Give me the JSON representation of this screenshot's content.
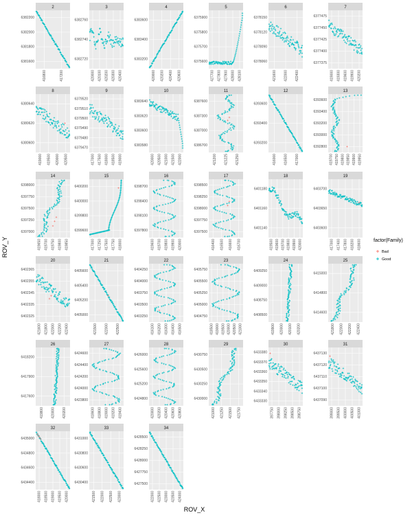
{
  "chart_data": {
    "type": "scatter",
    "xlabel": "ROV_X",
    "ylabel": "ROV_Y",
    "facet_by": "id",
    "grid": true,
    "legend": {
      "title": "factor(Family)",
      "placement": "right",
      "entries": [
        {
          "name": "Bad",
          "color": "#f8766d"
        },
        {
          "name": "Good",
          "color": "#00bfc4"
        }
      ]
    },
    "colors": {
      "Bad": "#f8766d",
      "Good": "#00bfc4",
      "panel_bg": "#ebebeb",
      "strip_bg": "#d9d9d9",
      "grid": "#ffffff"
    },
    "panels": [
      {
        "id": "2",
        "xticks": [
          "416800",
          "417200"
        ],
        "yticks": [
          "6382200",
          "6382000",
          "6381800",
          "6381600"
        ],
        "xlim": [
          416600,
          417300
        ],
        "ylim": [
          6381500,
          6382250
        ],
        "shape": "line_down",
        "bad": []
      },
      {
        "id": "3",
        "xticks": [
          "420000",
          "420100",
          "420200",
          "420300",
          "420400"
        ],
        "yticks": [
          "6382760",
          "6382740",
          "6382720"
        ],
        "xlim": [
          419950,
          420420
        ],
        "ylim": [
          6382710,
          6382775
        ],
        "shape": "jagged_flat",
        "bad": []
      },
      {
        "id": "4",
        "xticks": [
          "420000",
          "420200",
          "420400",
          "420600"
        ],
        "yticks": [
          "6383600",
          "6383400",
          "6383200"
        ],
        "xlim": [
          419950,
          420650
        ],
        "ylim": [
          6383100,
          6383650
        ],
        "shape": "line_up",
        "bad": []
      },
      {
        "id": "5",
        "xticks": [
          "427700",
          "427800",
          "427900",
          "428000",
          "428100"
        ],
        "yticks": [
          "6375900",
          "6375800",
          "6375700",
          "6375600"
        ],
        "xlim": [
          427650,
          428150
        ],
        "ylim": [
          6375580,
          6375930
        ],
        "shape": "hockey",
        "bad": []
      },
      {
        "id": "6",
        "xticks": [
          "421600",
          "422000",
          "422400"
        ],
        "yticks": [
          "6378150",
          "6378120",
          "6378090",
          "6378060"
        ],
        "xlim": [
          421500,
          422500
        ],
        "ylim": [
          6378050,
          6378170
        ],
        "shape": "decline_noisy",
        "bad": []
      },
      {
        "id": "7",
        "xticks": [
          "419000",
          "419300",
          "419600",
          "419900",
          "420200"
        ],
        "yticks": [
          "6377475",
          "6377450",
          "6377425",
          "6377400",
          "6377375"
        ],
        "xlim": [
          418900,
          420300
        ],
        "ylim": [
          6377370,
          6377480
        ],
        "shape": "decline_noisy",
        "bad": []
      },
      {
        "id": "8",
        "xticks": [
          "419000",
          "419500",
          "420000",
          "420500"
        ],
        "yticks": [
          "6380640",
          "6380620",
          "6380600"
        ],
        "xlim": [
          418850,
          420650
        ],
        "ylim": [
          6380590,
          6380650
        ],
        "shape": "decline_noisy",
        "bad": [
          [
            0.85,
            0.5
          ]
        ]
      },
      {
        "id": "9",
        "xticks": [
          "417000",
          "417500",
          "418000",
          "418500",
          "419000"
        ],
        "yticks": [
          "6379520",
          "6379510",
          "6379500",
          "6379490",
          "6379480",
          "6379470"
        ],
        "xlim": [
          416900,
          419100
        ],
        "ylim": [
          6379465,
          6379525
        ],
        "shape": "decline_noisy",
        "bad": []
      },
      {
        "id": "10",
        "xticks": [
          "420000",
          "420500",
          "421000",
          "421500",
          "422000"
        ],
        "yticks": [
          "6383640",
          "6383620",
          "6383600",
          "6383580"
        ],
        "xlim": [
          419850,
          422200
        ],
        "ylim": [
          6383575,
          6383650
        ],
        "shape": "decline_drop",
        "bad": []
      },
      {
        "id": "11",
        "xticks": [
          "421200",
          "421225",
          "421250"
        ],
        "yticks": [
          "6387600",
          "6387300",
          "6387000",
          "6386700"
        ],
        "xlim": [
          421190,
          421265
        ],
        "ylim": [
          6386650,
          6387850
        ],
        "shape": "vertical_jagged",
        "bad": [
          [
            0.55,
            0.55
          ],
          [
            0.6,
            0.6
          ]
        ]
      },
      {
        "id": "12",
        "xticks": [
          "416000",
          "416500",
          "417000"
        ],
        "yticks": [
          "6393600",
          "6393400",
          "6393200"
        ],
        "xlim": [
          415900,
          417200
        ],
        "ylim": [
          6393100,
          6393700
        ],
        "shape": "line_down",
        "bad": []
      },
      {
        "id": "13",
        "xticks": [
          "419700",
          "419750",
          "419800",
          "419850",
          "419900",
          "419950"
        ],
        "yticks": [
          "6393600",
          "6393400",
          "6393200",
          "6393000",
          "6392800"
        ],
        "xlim": [
          419680,
          419960
        ],
        "ylim": [
          6392750,
          6393650
        ],
        "shape": "vertical_left",
        "bad": [
          [
            0.55,
            0.1
          ]
        ]
      },
      {
        "id": "14",
        "xticks": [
          "419650",
          "419700",
          "419750",
          "419800",
          "419850"
        ],
        "yticks": [
          "6398000",
          "6397750",
          "6397500",
          "6397250",
          "6397000"
        ],
        "xlim": [
          419630,
          419870
        ],
        "ylim": [
          6396950,
          6398050
        ],
        "shape": "rising_sparse",
        "bad": [
          [
            0.6,
            0.35
          ],
          [
            0.55,
            0.28
          ],
          [
            0.5,
            0.2
          ]
        ]
      },
      {
        "id": "15",
        "xticks": [
          "417000",
          "417250",
          "417500",
          "417750",
          "418000"
        ],
        "yticks": [
          "6400200",
          "6400000",
          "6399800",
          "6399600"
        ],
        "xlim": [
          416950,
          418050
        ],
        "ylim": [
          6399550,
          6400250
        ],
        "shape": "hockey_vertical",
        "bad": [
          [
            0.85,
            0.85
          ]
        ]
      },
      {
        "id": "16",
        "xticks": [
          "419600",
          "419700",
          "419800",
          "419900",
          "420000"
        ],
        "yticks": [
          "6398700",
          "6398400",
          "6398100",
          "6397800"
        ],
        "xlim": [
          419580,
          420020
        ],
        "ylim": [
          6397750,
          6398750
        ],
        "shape": "zigzag_vertical",
        "bad": []
      },
      {
        "id": "17",
        "xticks": [
          "416400",
          "416500",
          "416600",
          "416700"
        ],
        "yticks": [
          "6398500",
          "6398250",
          "6398000",
          "6397750",
          "6397500"
        ],
        "xlim": [
          416380,
          416720
        ],
        "ylim": [
          6397450,
          6398550
        ],
        "shape": "zigzag_vertical",
        "bad": [
          [
            0.55,
            0.55
          ],
          [
            0.6,
            0.62
          ]
        ]
      },
      {
        "id": "18",
        "xticks": [
          "419500",
          "419600",
          "419700",
          "419800",
          "419900",
          "420000"
        ],
        "yticks": [
          "6401180",
          "6401160",
          "6401140"
        ],
        "xlim": [
          419480,
          420020
        ],
        "ylim": [
          6401130,
          6401190
        ],
        "shape": "decline_bump",
        "bad": []
      },
      {
        "id": "19",
        "xticks": [
          "417000",
          "417400",
          "417800",
          "418200",
          "418600"
        ],
        "yticks": [
          "6403700",
          "6403650",
          "6403600"
        ],
        "xlim": [
          416900,
          418700
        ],
        "ylim": [
          6403590,
          6403730
        ],
        "shape": "decline_gentle",
        "bad": [
          [
            0.9,
            0.6
          ]
        ]
      },
      {
        "id": "20",
        "xticks": [
          "421600",
          "421800",
          "422000",
          "422200",
          "422400"
        ],
        "yticks": [
          "6402365",
          "6402355",
          "6402345",
          "6402335",
          "6402325"
        ],
        "xlim": [
          421550,
          422450
        ],
        "ylim": [
          6402322,
          6402368
        ],
        "shape": "decline_noisy",
        "bad": [
          [
            0.4,
            0.4
          ],
          [
            0.45,
            0.45
          ]
        ]
      },
      {
        "id": "21",
        "xticks": [
          "421500",
          "422000",
          "422500"
        ],
        "yticks": [
          "6405600",
          "6405400",
          "6405200",
          "6405000"
        ],
        "xlim": [
          421400,
          422700
        ],
        "ylim": [
          6404950,
          6405650
        ],
        "shape": "line_down",
        "bad": [
          [
            0.55,
            0.45
          ]
        ]
      },
      {
        "id": "22",
        "xticks": [
          "416100",
          "416200",
          "416300",
          "416400",
          "416500"
        ],
        "yticks": [
          "6404250",
          "6404000",
          "6403750",
          "6403500",
          "6403250"
        ],
        "xlim": [
          416080,
          416520
        ],
        "ylim": [
          6403200,
          6404300
        ],
        "shape": "zigzag_vertical",
        "bad": [
          [
            0.3,
            0.2
          ]
        ]
      },
      {
        "id": "23",
        "xticks": [
          "418500",
          "419000",
          "419500",
          "420000",
          "420500",
          "421000"
        ],
        "yticks": [
          "6405750",
          "6405500",
          "6405250",
          "6405000",
          "6404750"
        ],
        "xlim": [
          418400,
          421100
        ],
        "ylim": [
          6404700,
          6405800
        ],
        "shape": "zigzag_wide",
        "bad": []
      },
      {
        "id": "24",
        "xticks": [
          "419900",
          "420000",
          "420100",
          "420200"
        ],
        "yticks": [
          "6409250",
          "6409000",
          "6408750",
          "6408500"
        ],
        "xlim": [
          419850,
          420250
        ],
        "ylim": [
          6408350,
          6409350
        ],
        "shape": "vertical_line",
        "bad": []
      },
      {
        "id": "25",
        "xticks": [
          "421800",
          "422000",
          "422200",
          "422400"
        ],
        "yticks": [
          "6415000",
          "6414800",
          "6414600"
        ],
        "xlim": [
          421750,
          422450
        ],
        "ylim": [
          6414450,
          6415100
        ],
        "shape": "rising_sparse",
        "bad": []
      },
      {
        "id": "26",
        "xticks": [
          "419800",
          "420000",
          "420200"
        ],
        "yticks": [
          "6418200",
          "6417900",
          "6417600"
        ],
        "xlim": [
          419700,
          420300
        ],
        "ylim": [
          6417350,
          6418400
        ],
        "shape": "vertical_line",
        "bad": []
      },
      {
        "id": "27",
        "xticks": [
          "418600",
          "418800",
          "419000",
          "419200",
          "419400"
        ],
        "yticks": [
          "6424600",
          "6424400",
          "6424200",
          "6424000",
          "6423800"
        ],
        "xlim": [
          418550,
          419450
        ],
        "ylim": [
          6423750,
          6424700
        ],
        "shape": "zigzag_wide",
        "bad": []
      },
      {
        "id": "28",
        "xticks": [
          "420000",
          "420200",
          "420400",
          "420600",
          "420800"
        ],
        "yticks": [
          "6426000",
          "6425600",
          "6425200",
          "6424800"
        ],
        "xlim": [
          419950,
          420850
        ],
        "ylim": [
          6424700,
          6426100
        ],
        "shape": "zigzag_vertical",
        "bad": []
      },
      {
        "id": "29",
        "xticks": [
          "421000",
          "421250",
          "421500",
          "421750"
        ],
        "yticks": [
          "6430750",
          "6430500",
          "6430250",
          "6430000"
        ],
        "xlim": [
          420900,
          421850
        ],
        "ylim": [
          6429950,
          6430850
        ],
        "shape": "rising_sparse",
        "bad": []
      },
      {
        "id": "30",
        "xticks": [
          "397750",
          "398000",
          "398250",
          "398500",
          "398750"
        ],
        "yticks": [
          "6433380",
          "6433370",
          "6433360",
          "6433350",
          "6433340",
          "6433330"
        ],
        "xlim": [
          397700,
          398800
        ],
        "ylim": [
          6433325,
          6433385
        ],
        "shape": "decline_noisy",
        "bad": [
          [
            0.05,
            0.9
          ]
        ]
      },
      {
        "id": "31",
        "xticks": [
          "399000",
          "399500",
          "400000",
          "400500",
          "401000"
        ],
        "yticks": [
          "6437130",
          "6437120",
          "6437110",
          "6437100",
          "6437090"
        ],
        "xlim": [
          398900,
          401100
        ],
        "ylim": [
          6437085,
          6437135
        ],
        "shape": "decline_noisy",
        "bad": [
          [
            0.05,
            0.85
          ]
        ]
      },
      {
        "id": "32",
        "xticks": [
          "418000",
          "418500",
          "419000",
          "419500",
          "420000"
        ],
        "yticks": [
          "6435000",
          "6434800",
          "6434600",
          "6434400"
        ],
        "xlim": [
          417900,
          420100
        ],
        "ylim": [
          6434350,
          6435050
        ],
        "shape": "line_down",
        "bad": [
          [
            0.05,
            0.95
          ],
          [
            0.08,
            0.92
          ],
          [
            0.11,
            0.9
          ],
          [
            0.14,
            0.87
          ]
        ]
      },
      {
        "id": "33",
        "xticks": [
          "421500",
          "422000",
          "422500",
          "423000"
        ],
        "yticks": [
          "6431000",
          "6430800",
          "6430600",
          "6430400"
        ],
        "xlim": [
          421400,
          423200
        ],
        "ylim": [
          6430300,
          6431050
        ],
        "shape": "line_down",
        "bad": []
      },
      {
        "id": "34",
        "xticks": [
          "422000",
          "422500",
          "423000",
          "423500",
          "424000"
        ],
        "yticks": [
          "6428500",
          "6428250",
          "6428000",
          "6427750",
          "6427500"
        ],
        "xlim": [
          421900,
          424100
        ],
        "ylim": [
          6427450,
          6428550
        ],
        "shape": "line_down",
        "bad": []
      }
    ]
  }
}
